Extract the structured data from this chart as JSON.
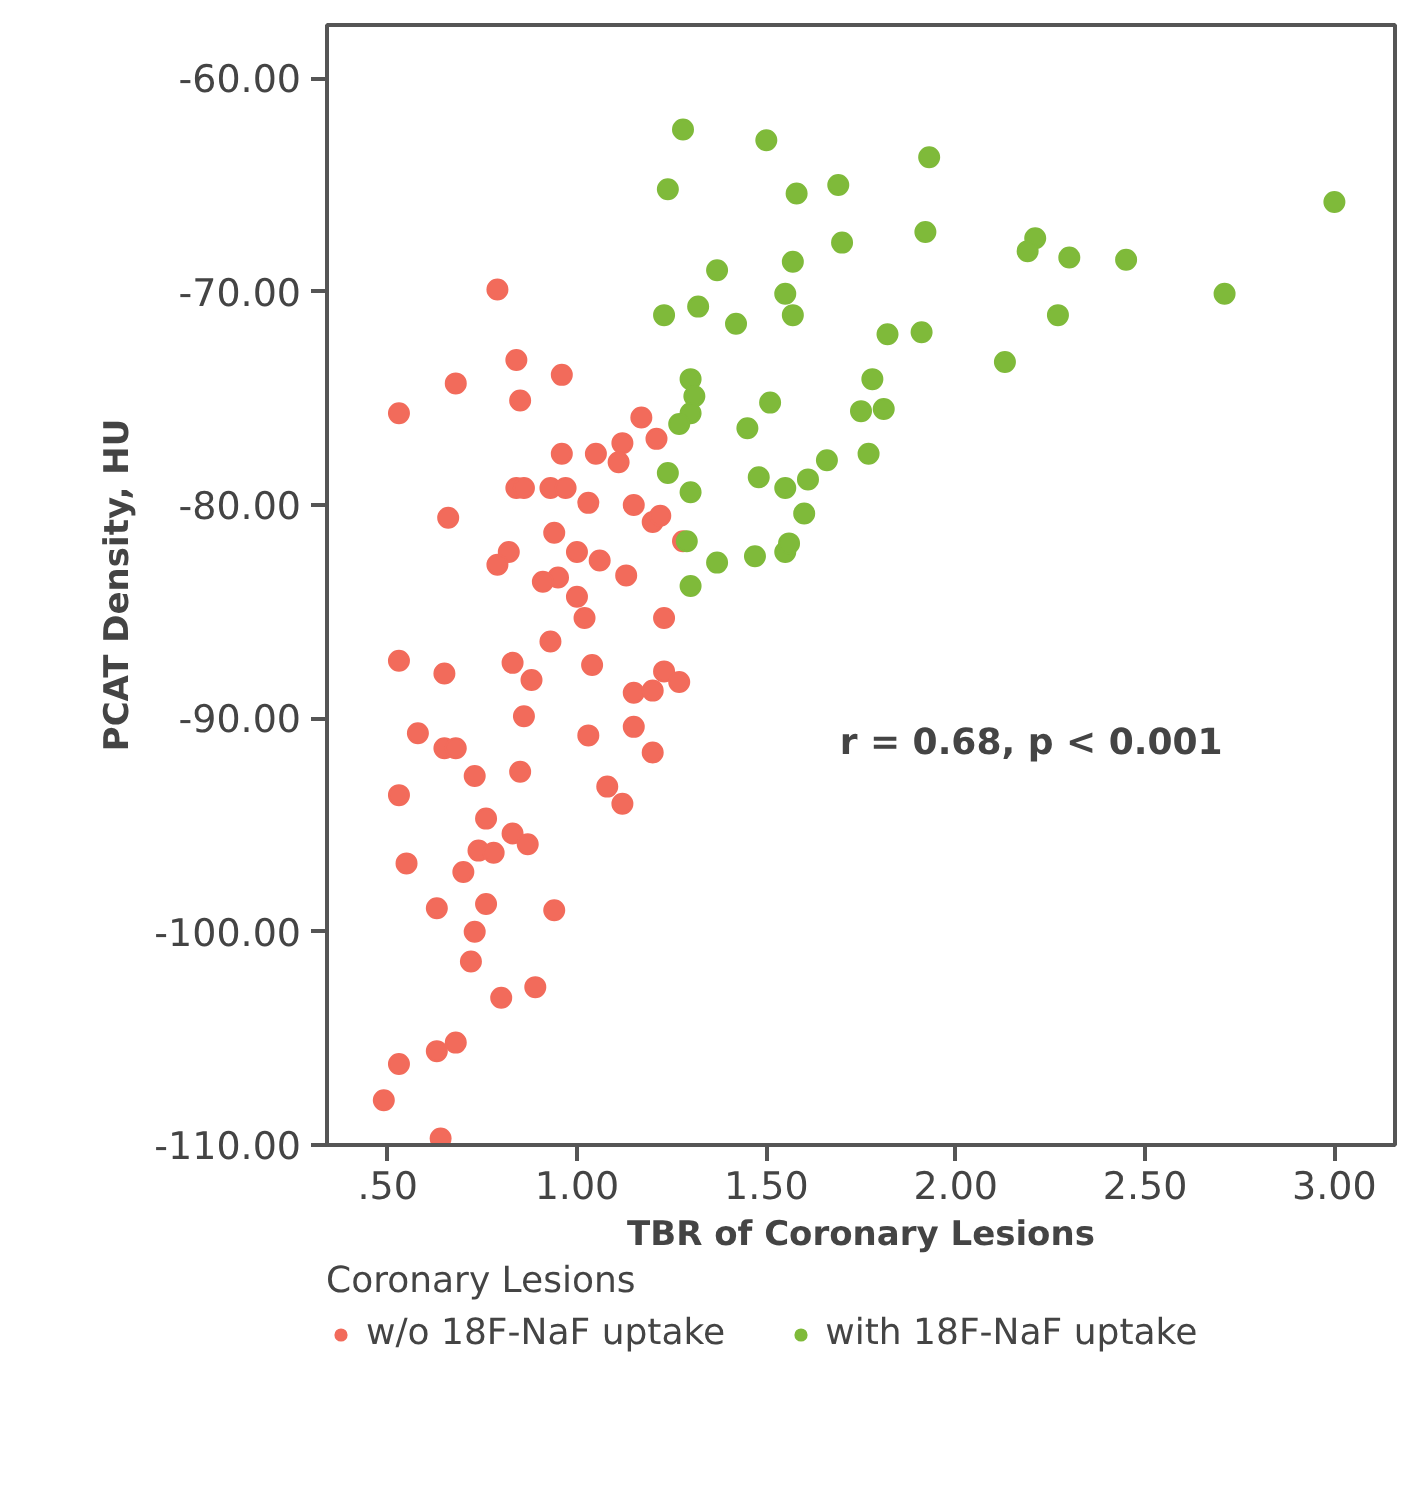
{
  "chart_data": {
    "type": "scatter",
    "xlabel": "TBR of Coronary Lesions",
    "ylabel": "PCAT Density, HU",
    "legend_title": "Coronary Lesions",
    "legend": "bottom",
    "marker": "circle",
    "grid": false,
    "xlim": [
      0.34,
      3.16
    ],
    "ylim": [
      -110,
      -57.5
    ],
    "xticks": [
      {
        "value": 0.5,
        "label": ".50"
      },
      {
        "value": 1.0,
        "label": "1.00"
      },
      {
        "value": 1.5,
        "label": "1.50"
      },
      {
        "value": 2.0,
        "label": "2.00"
      },
      {
        "value": 2.5,
        "label": "2.50"
      },
      {
        "value": 3.0,
        "label": "3.00"
      }
    ],
    "yticks": [
      {
        "value": -60,
        "label": "-60.00"
      },
      {
        "value": -70,
        "label": "-70.00"
      },
      {
        "value": -80,
        "label": "-80.00"
      },
      {
        "value": -90,
        "label": "-90.00"
      },
      {
        "value": -100,
        "label": "-100.00"
      },
      {
        "value": -110,
        "label": "-110.00"
      }
    ],
    "annotations": [
      "r = 0.68, p < 0.001"
    ],
    "series": [
      {
        "name": "w/o 18F-NaF uptake",
        "color": "#f26b5b",
        "x": [
          0.49,
          0.53,
          0.64,
          0.63,
          0.68,
          0.8,
          0.89,
          0.72,
          0.73,
          0.63,
          0.76,
          0.94,
          0.55,
          0.7,
          0.74,
          0.78,
          0.83,
          0.87,
          0.76,
          0.53,
          0.73,
          0.85,
          1.08,
          1.12,
          0.58,
          0.65,
          0.68,
          0.86,
          1.03,
          1.15,
          1.2,
          0.53,
          0.65,
          0.83,
          0.88,
          0.93,
          1.04,
          1.15,
          1.2,
          1.23,
          1.27,
          1.02,
          1.23,
          0.79,
          0.84,
          0.68,
          0.96,
          0.85,
          0.53,
          1.17,
          1.21,
          1.12,
          1.05,
          0.96,
          1.11,
          0.84,
          0.86,
          0.93,
          0.97,
          1.03,
          1.15,
          1.2,
          1.22,
          0.66,
          0.94,
          1.0,
          0.82,
          0.79,
          1.06,
          1.13,
          0.95,
          0.91,
          1.0,
          1.28
        ],
        "values": [
          -107.9,
          -106.2,
          -109.7,
          -105.6,
          -105.2,
          -103.1,
          -102.6,
          -101.4,
          -100.0,
          -98.9,
          -98.7,
          -99.0,
          -96.8,
          -97.2,
          -96.2,
          -96.3,
          -95.4,
          -95.9,
          -94.7,
          -93.6,
          -92.7,
          -92.5,
          -93.2,
          -94.0,
          -90.7,
          -91.4,
          -91.4,
          -89.9,
          -90.8,
          -90.4,
          -91.6,
          -87.3,
          -87.9,
          -87.4,
          -88.2,
          -86.4,
          -87.5,
          -88.8,
          -88.7,
          -87.8,
          -88.3,
          -85.3,
          -85.3,
          -69.9,
          -73.2,
          -74.3,
          -73.9,
          -75.1,
          -75.7,
          -75.9,
          -76.9,
          -77.1,
          -77.6,
          -77.6,
          -78.0,
          -79.2,
          -79.2,
          -79.2,
          -79.2,
          -79.9,
          -80.0,
          -80.8,
          -80.5,
          -80.6,
          -81.3,
          -82.2,
          -82.2,
          -82.8,
          -82.6,
          -83.3,
          -83.4,
          -83.6,
          -84.3,
          -81.7
        ]
      },
      {
        "name": "with 18F-NaF uptake",
        "color": "#7fba3a",
        "x": [
          1.28,
          1.5,
          1.24,
          1.58,
          1.69,
          1.93,
          1.7,
          1.92,
          1.37,
          1.57,
          1.55,
          1.57,
          1.23,
          1.32,
          1.42,
          1.82,
          1.91,
          1.3,
          1.31,
          1.3,
          1.27,
          1.51,
          1.45,
          1.78,
          1.75,
          1.81,
          1.77,
          1.66,
          1.24,
          1.3,
          1.48,
          1.55,
          1.61,
          1.6,
          1.29,
          1.37,
          1.47,
          1.55,
          1.56,
          1.3,
          3.0,
          2.21,
          2.19,
          2.3,
          2.45,
          2.71,
          2.27,
          2.13
        ],
        "values": [
          -62.4,
          -62.9,
          -65.2,
          -65.4,
          -65.0,
          -63.7,
          -67.7,
          -67.2,
          -69.0,
          -68.6,
          -70.1,
          -71.1,
          -71.1,
          -70.7,
          -71.5,
          -72.0,
          -71.9,
          -74.1,
          -74.9,
          -75.7,
          -76.2,
          -75.2,
          -76.4,
          -74.1,
          -75.6,
          -75.5,
          -77.6,
          -77.9,
          -78.5,
          -79.4,
          -78.7,
          -79.2,
          -78.8,
          -80.4,
          -81.7,
          -82.7,
          -82.4,
          -82.2,
          -81.8,
          -83.8,
          -65.8,
          -67.5,
          -68.1,
          -68.4,
          -68.5,
          -70.1,
          -71.1,
          -73.3
        ]
      }
    ]
  }
}
